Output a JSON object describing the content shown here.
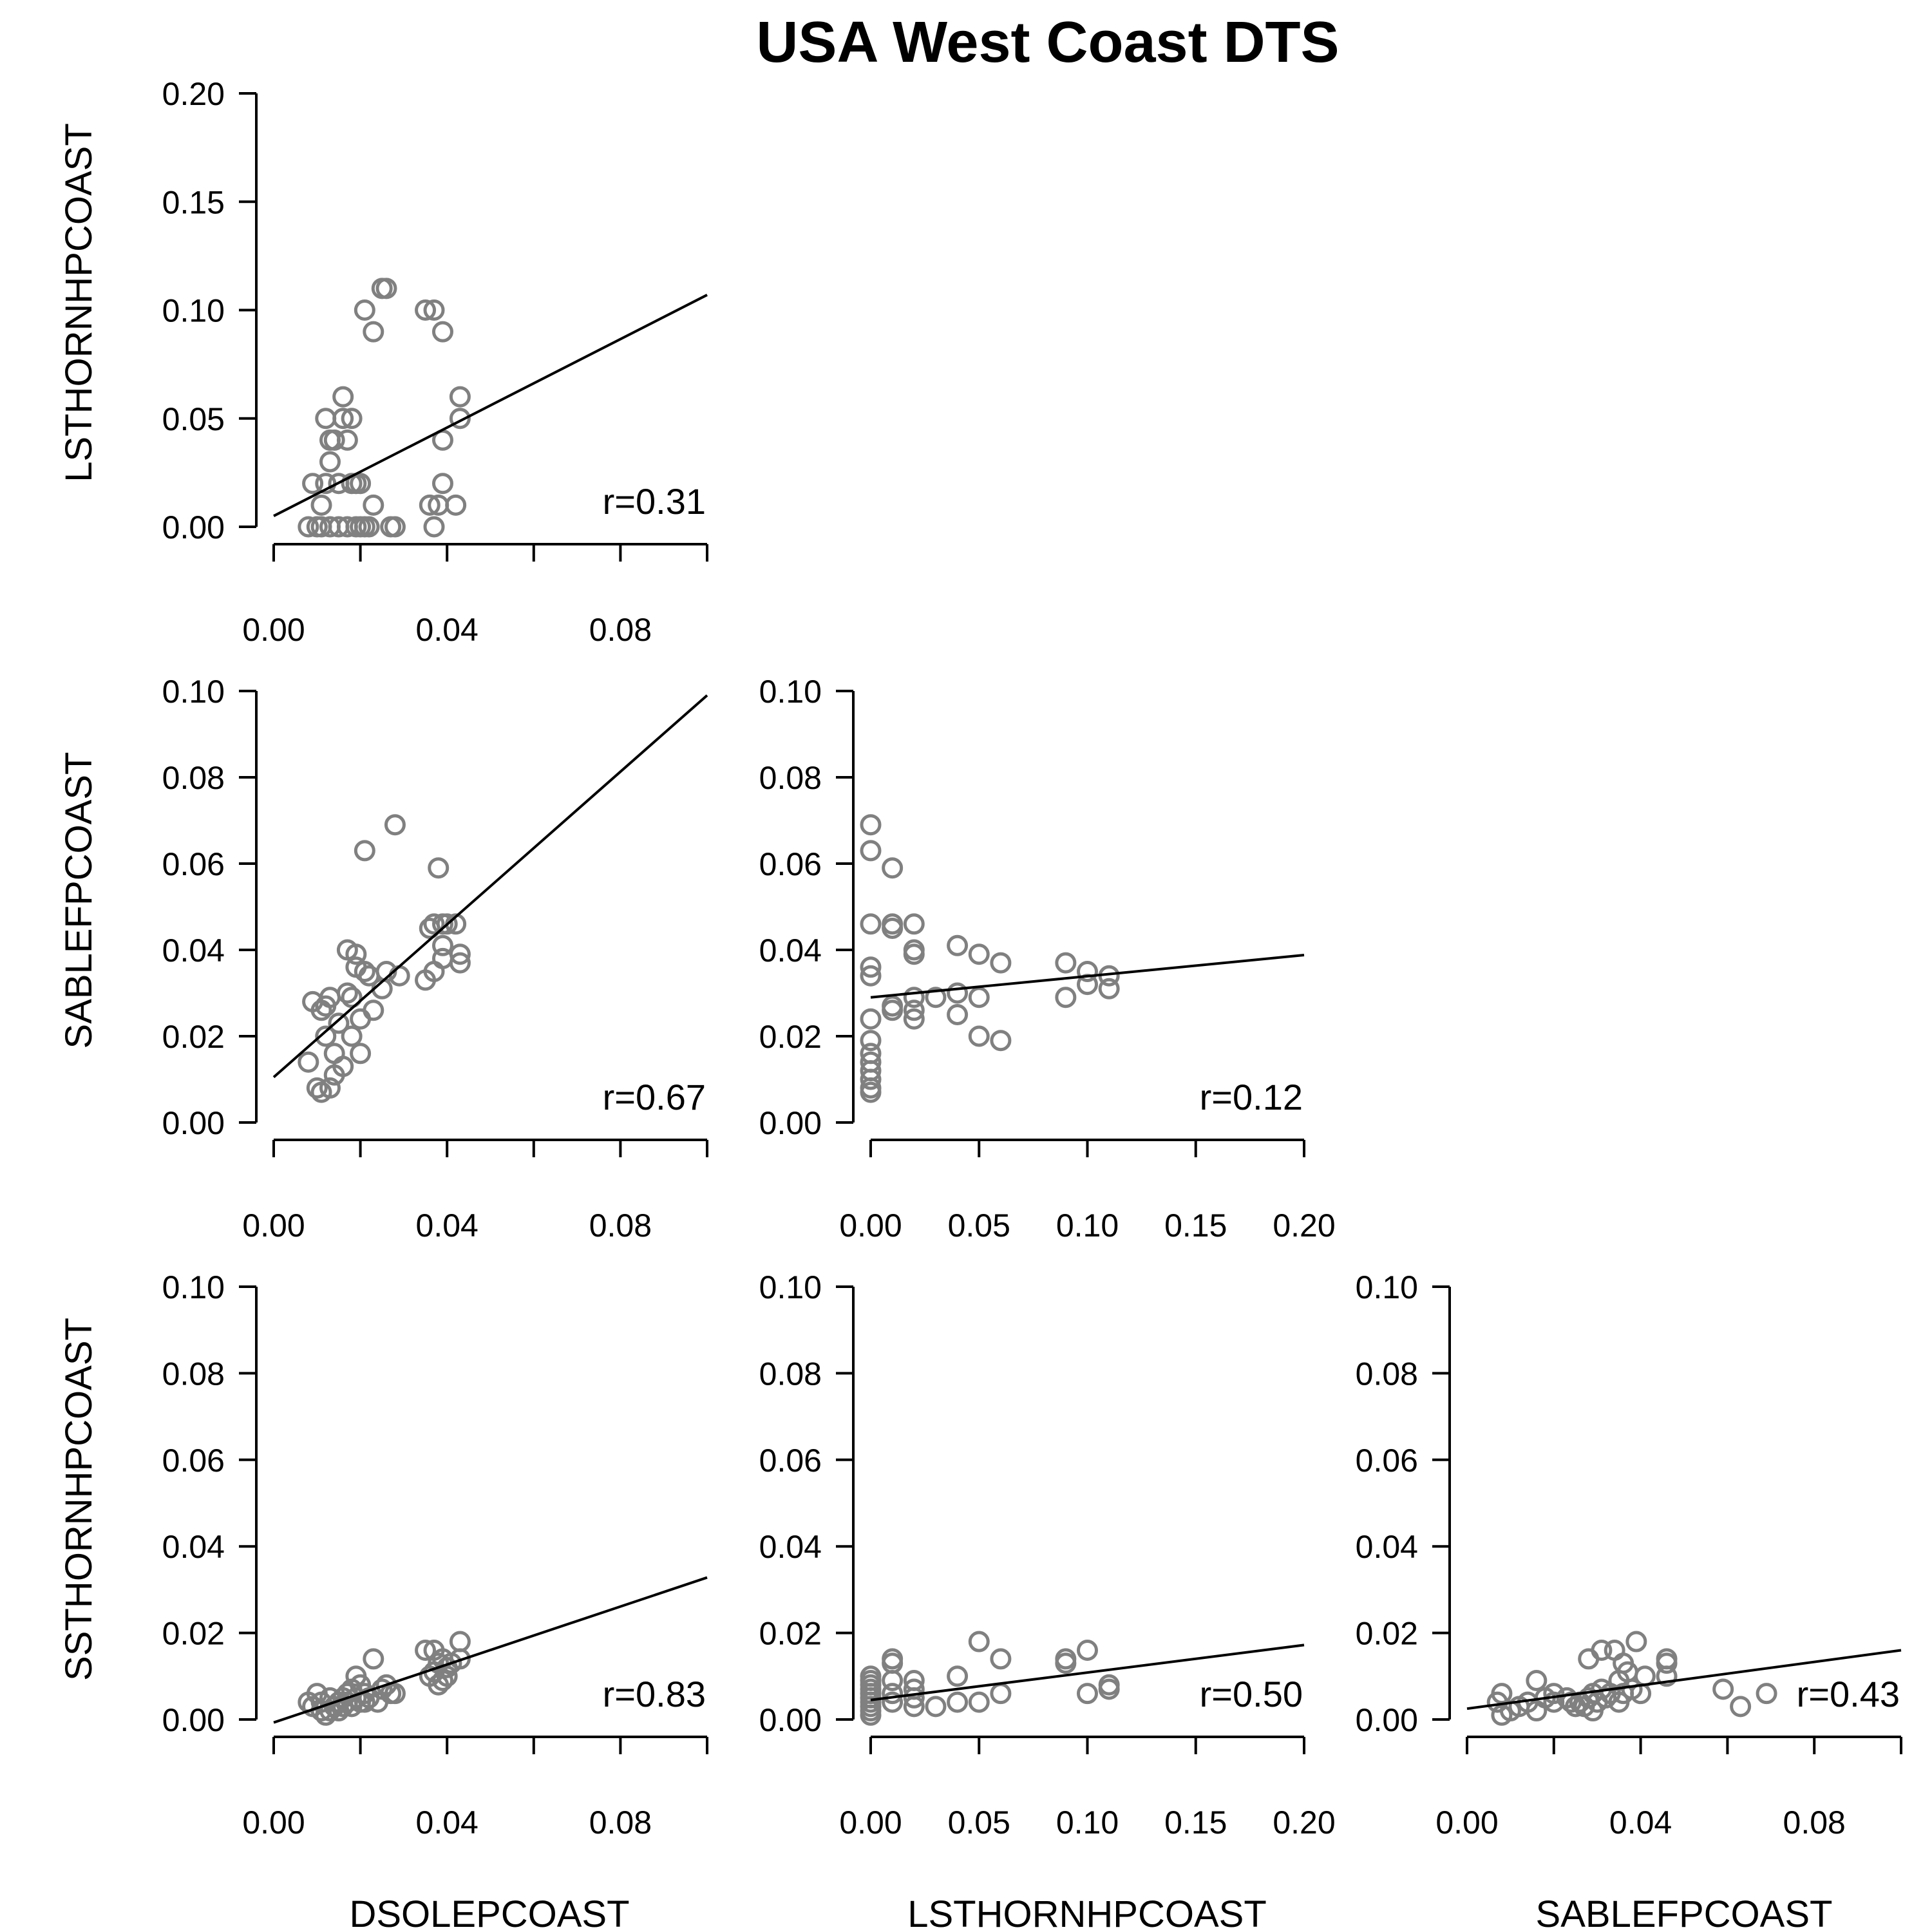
{
  "title": "USA West Coast DTS",
  "colors": {
    "point": "#808080",
    "line": "#000000"
  },
  "row_labels": [
    "LSTHORNHPCOAST",
    "SABLEFPCOAST",
    "SSTHORNHPCOAST"
  ],
  "col_labels": [
    "DSOLEPCOAST",
    "LSTHORNHPCOAST",
    "SABLEFPCOAST"
  ],
  "chart_data": [
    {
      "type": "scatter",
      "row": 0,
      "col": 0,
      "xlabel": "DSOLEPCOAST",
      "ylabel": "LSTHORNHPCOAST",
      "xlim": [
        0,
        0.1
      ],
      "ylim": [
        0,
        0.2
      ],
      "xticks": [
        "0.00",
        "0.04",
        "0.08"
      ],
      "xtick_values": [
        0,
        0.04,
        0.08
      ],
      "yticks": [
        "0.00",
        "0.05",
        "0.10",
        "0.15",
        "0.20"
      ],
      "ytick_values": [
        0,
        0.05,
        0.1,
        0.15,
        0.2
      ],
      "fit": {
        "x": [
          0,
          0.1
        ],
        "y": [
          0.005,
          0.107
        ]
      },
      "r_label": "r=0.31",
      "points": [
        [
          0.008,
          0
        ],
        [
          0.009,
          0.02
        ],
        [
          0.01,
          0
        ],
        [
          0.011,
          0
        ],
        [
          0.011,
          0.01
        ],
        [
          0.012,
          0.02
        ],
        [
          0.012,
          0.05
        ],
        [
          0.013,
          0
        ],
        [
          0.013,
          0.04
        ],
        [
          0.013,
          0.03
        ],
        [
          0.014,
          0.04
        ],
        [
          0.015,
          0.02
        ],
        [
          0.015,
          0
        ],
        [
          0.016,
          0.05
        ],
        [
          0.016,
          0.06
        ],
        [
          0.017,
          0
        ],
        [
          0.017,
          0.04
        ],
        [
          0.018,
          0.02
        ],
        [
          0.018,
          0.05
        ],
        [
          0.019,
          0
        ],
        [
          0.019,
          0.02
        ],
        [
          0.02,
          0
        ],
        [
          0.02,
          0.02
        ],
        [
          0.021,
          0.1
        ],
        [
          0.021,
          0
        ],
        [
          0.022,
          0
        ],
        [
          0.023,
          0.09
        ],
        [
          0.023,
          0.01
        ],
        [
          0.025,
          0.11
        ],
        [
          0.026,
          0.11
        ],
        [
          0.027,
          0
        ],
        [
          0.028,
          0
        ],
        [
          0.035,
          0.1
        ],
        [
          0.036,
          0.01
        ],
        [
          0.037,
          0
        ],
        [
          0.037,
          0.1
        ],
        [
          0.038,
          0.01
        ],
        [
          0.039,
          0.09
        ],
        [
          0.039,
          0.02
        ],
        [
          0.039,
          0.04
        ],
        [
          0.042,
          0.01
        ],
        [
          0.043,
          0.06
        ],
        [
          0.043,
          0.05
        ]
      ]
    },
    {
      "type": "scatter",
      "row": 1,
      "col": 0,
      "xlabel": "DSOLEPCOAST",
      "ylabel": "SABLEFPCOAST",
      "xlim": [
        0,
        0.1
      ],
      "ylim": [
        0,
        0.1
      ],
      "xticks": [
        "0.00",
        "0.04",
        "0.08"
      ],
      "xtick_values": [
        0,
        0.04,
        0.08
      ],
      "yticks": [
        "0.00",
        "0.02",
        "0.04",
        "0.06",
        "0.08",
        "0.10"
      ],
      "ytick_values": [
        0,
        0.02,
        0.04,
        0.06,
        0.08,
        0.1
      ],
      "fit": {
        "x": [
          0,
          0.1
        ],
        "y": [
          0.0105,
          0.099
        ]
      },
      "r_label": "r=0.67",
      "points": [
        [
          0.008,
          0.014
        ],
        [
          0.009,
          0.028
        ],
        [
          0.01,
          0.008
        ],
        [
          0.011,
          0.026
        ],
        [
          0.011,
          0.007
        ],
        [
          0.012,
          0.027
        ],
        [
          0.012,
          0.02
        ],
        [
          0.013,
          0.029
        ],
        [
          0.013,
          0.008
        ],
        [
          0.014,
          0.016
        ],
        [
          0.014,
          0.011
        ],
        [
          0.015,
          0.023
        ],
        [
          0.016,
          0.013
        ],
        [
          0.017,
          0.03
        ],
        [
          0.017,
          0.04
        ],
        [
          0.018,
          0.029
        ],
        [
          0.018,
          0.02
        ],
        [
          0.019,
          0.039
        ],
        [
          0.019,
          0.036
        ],
        [
          0.02,
          0.024
        ],
        [
          0.02,
          0.016
        ],
        [
          0.021,
          0.035
        ],
        [
          0.021,
          0.063
        ],
        [
          0.022,
          0.034
        ],
        [
          0.023,
          0.026
        ],
        [
          0.025,
          0.031
        ],
        [
          0.026,
          0.035
        ],
        [
          0.028,
          0.069
        ],
        [
          0.029,
          0.034
        ],
        [
          0.035,
          0.033
        ],
        [
          0.036,
          0.045
        ],
        [
          0.037,
          0.046
        ],
        [
          0.037,
          0.035
        ],
        [
          0.038,
          0.059
        ],
        [
          0.039,
          0.046
        ],
        [
          0.039,
          0.041
        ],
        [
          0.039,
          0.038
        ],
        [
          0.04,
          0.046
        ],
        [
          0.042,
          0.046
        ],
        [
          0.043,
          0.039
        ],
        [
          0.043,
          0.037
        ]
      ]
    },
    {
      "type": "scatter",
      "row": 1,
      "col": 1,
      "xlabel": "LSTHORNHPCOAST",
      "ylabel": "SABLEFPCOAST",
      "xlim": [
        0,
        0.2
      ],
      "ylim": [
        0,
        0.1
      ],
      "xticks": [
        "0.00",
        "0.05",
        "0.10",
        "0.15",
        "0.20"
      ],
      "xtick_values": [
        0,
        0.05,
        0.1,
        0.15,
        0.2
      ],
      "yticks": [
        "0.00",
        "0.02",
        "0.04",
        "0.06",
        "0.08",
        "0.10"
      ],
      "ytick_values": [
        0,
        0.02,
        0.04,
        0.06,
        0.08,
        0.1
      ],
      "fit": {
        "x": [
          0,
          0.2
        ],
        "y": [
          0.029,
          0.0388
        ]
      },
      "r_label": "r=0.12",
      "points": [
        [
          0,
          0.069
        ],
        [
          0,
          0.063
        ],
        [
          0,
          0.046
        ],
        [
          0,
          0.036
        ],
        [
          0,
          0.034
        ],
        [
          0,
          0.024
        ],
        [
          0,
          0.019
        ],
        [
          0,
          0.016
        ],
        [
          0,
          0.014
        ],
        [
          0,
          0.012
        ],
        [
          0,
          0.01
        ],
        [
          0,
          0.008
        ],
        [
          0,
          0.007
        ],
        [
          0.01,
          0.059
        ],
        [
          0.01,
          0.046
        ],
        [
          0.01,
          0.045
        ],
        [
          0.01,
          0.027
        ],
        [
          0.01,
          0.026
        ],
        [
          0.02,
          0.046
        ],
        [
          0.02,
          0.04
        ],
        [
          0.02,
          0.039
        ],
        [
          0.02,
          0.029
        ],
        [
          0.02,
          0.026
        ],
        [
          0.02,
          0.024
        ],
        [
          0.03,
          0.029
        ],
        [
          0.04,
          0.041
        ],
        [
          0.04,
          0.03
        ],
        [
          0.04,
          0.025
        ],
        [
          0.05,
          0.039
        ],
        [
          0.05,
          0.029
        ],
        [
          0.05,
          0.02
        ],
        [
          0.06,
          0.037
        ],
        [
          0.06,
          0.019
        ],
        [
          0.09,
          0.037
        ],
        [
          0.09,
          0.029
        ],
        [
          0.1,
          0.035
        ],
        [
          0.1,
          0.032
        ],
        [
          0.11,
          0.034
        ],
        [
          0.11,
          0.031
        ]
      ]
    },
    {
      "type": "scatter",
      "row": 2,
      "col": 0,
      "xlabel": "DSOLEPCOAST",
      "ylabel": "SSTHORNHPCOAST",
      "xlim": [
        0,
        0.1
      ],
      "ylim": [
        0,
        0.1
      ],
      "xticks": [
        "0.00",
        "0.04",
        "0.08"
      ],
      "xtick_values": [
        0,
        0.04,
        0.08
      ],
      "yticks": [
        "0.00",
        "0.02",
        "0.04",
        "0.06",
        "0.08",
        "0.10"
      ],
      "ytick_values": [
        0,
        0.02,
        0.04,
        0.06,
        0.08,
        0.1
      ],
      "fit": {
        "x": [
          0,
          0.1
        ],
        "y": [
          -0.0007,
          0.0328
        ]
      },
      "r_label": "r=0.83",
      "points": [
        [
          0.008,
          0.004
        ],
        [
          0.009,
          0.003
        ],
        [
          0.01,
          0.006
        ],
        [
          0.011,
          0.002
        ],
        [
          0.011,
          0.004
        ],
        [
          0.012,
          0.001
        ],
        [
          0.013,
          0.005
        ],
        [
          0.013,
          0.002
        ],
        [
          0.014,
          0.003
        ],
        [
          0.015,
          0.004
        ],
        [
          0.015,
          0.002
        ],
        [
          0.016,
          0.005
        ],
        [
          0.016,
          0.003
        ],
        [
          0.017,
          0.006
        ],
        [
          0.017,
          0.004
        ],
        [
          0.018,
          0.007
        ],
        [
          0.018,
          0.003
        ],
        [
          0.019,
          0.01
        ],
        [
          0.019,
          0.005
        ],
        [
          0.02,
          0.008
        ],
        [
          0.02,
          0.004
        ],
        [
          0.021,
          0.006
        ],
        [
          0.021,
          0.004
        ],
        [
          0.022,
          0.005
        ],
        [
          0.023,
          0.014
        ],
        [
          0.024,
          0.004
        ],
        [
          0.025,
          0.007
        ],
        [
          0.026,
          0.008
        ],
        [
          0.027,
          0.006
        ],
        [
          0.028,
          0.006
        ],
        [
          0.035,
          0.016
        ],
        [
          0.036,
          0.01
        ],
        [
          0.037,
          0.016
        ],
        [
          0.037,
          0.011
        ],
        [
          0.038,
          0.008
        ],
        [
          0.038,
          0.013
        ],
        [
          0.039,
          0.009
        ],
        [
          0.039,
          0.014
        ],
        [
          0.04,
          0.01
        ],
        [
          0.04,
          0.012
        ],
        [
          0.041,
          0.013
        ],
        [
          0.043,
          0.018
        ],
        [
          0.043,
          0.014
        ]
      ]
    },
    {
      "type": "scatter",
      "row": 2,
      "col": 1,
      "xlabel": "LSTHORNHPCOAST",
      "ylabel": "SSTHORNHPCOAST",
      "xlim": [
        0,
        0.2
      ],
      "ylim": [
        0,
        0.1
      ],
      "xticks": [
        "0.00",
        "0.05",
        "0.10",
        "0.15",
        "0.20"
      ],
      "xtick_values": [
        0,
        0.05,
        0.1,
        0.15,
        0.2
      ],
      "yticks": [
        "0.00",
        "0.02",
        "0.04",
        "0.06",
        "0.08",
        "0.10"
      ],
      "ytick_values": [
        0,
        0.02,
        0.04,
        0.06,
        0.08,
        0.1
      ],
      "fit": {
        "x": [
          0,
          0.2
        ],
        "y": [
          0.0045,
          0.0172
        ]
      },
      "r_label": "r=0.50",
      "points": [
        [
          0,
          0.001
        ],
        [
          0,
          0.002
        ],
        [
          0,
          0.003
        ],
        [
          0,
          0.004
        ],
        [
          0,
          0.005
        ],
        [
          0,
          0.006
        ],
        [
          0,
          0.007
        ],
        [
          0,
          0.008
        ],
        [
          0,
          0.009
        ],
        [
          0,
          0.01
        ],
        [
          0.01,
          0.014
        ],
        [
          0.01,
          0.013
        ],
        [
          0.01,
          0.009
        ],
        [
          0.01,
          0.006
        ],
        [
          0.01,
          0.004
        ],
        [
          0.02,
          0.009
        ],
        [
          0.02,
          0.007
        ],
        [
          0.02,
          0.005
        ],
        [
          0.02,
          0.003
        ],
        [
          0.03,
          0.003
        ],
        [
          0.04,
          0.01
        ],
        [
          0.04,
          0.004
        ],
        [
          0.05,
          0.018
        ],
        [
          0.05,
          0.004
        ],
        [
          0.06,
          0.014
        ],
        [
          0.06,
          0.006
        ],
        [
          0.09,
          0.014
        ],
        [
          0.09,
          0.013
        ],
        [
          0.1,
          0.016
        ],
        [
          0.1,
          0.006
        ],
        [
          0.11,
          0.008
        ],
        [
          0.11,
          0.007
        ]
      ]
    },
    {
      "type": "scatter",
      "row": 2,
      "col": 2,
      "xlabel": "SABLEFPCOAST",
      "ylabel": "SSTHORNHPCOAST",
      "xlim": [
        0,
        0.1
      ],
      "ylim": [
        0,
        0.1
      ],
      "xticks": [
        "0.00",
        "0.04",
        "0.08"
      ],
      "xtick_values": [
        0,
        0.04,
        0.08
      ],
      "yticks": [
        "0.00",
        "0.02",
        "0.04",
        "0.06",
        "0.08",
        "0.10"
      ],
      "ytick_values": [
        0,
        0.02,
        0.04,
        0.06,
        0.08,
        0.1
      ],
      "fit": {
        "x": [
          0,
          0.1
        ],
        "y": [
          0.0025,
          0.016
        ]
      },
      "r_label": "r=0.43",
      "points": [
        [
          0.007,
          0.004
        ],
        [
          0.008,
          0.001
        ],
        [
          0.008,
          0.006
        ],
        [
          0.01,
          0.002
        ],
        [
          0.012,
          0.003
        ],
        [
          0.014,
          0.004
        ],
        [
          0.016,
          0.009
        ],
        [
          0.016,
          0.002
        ],
        [
          0.018,
          0.005
        ],
        [
          0.02,
          0.004
        ],
        [
          0.02,
          0.006
        ],
        [
          0.023,
          0.005
        ],
        [
          0.024,
          0.004
        ],
        [
          0.025,
          0.003
        ],
        [
          0.026,
          0.004
        ],
        [
          0.027,
          0.003
        ],
        [
          0.028,
          0.005
        ],
        [
          0.028,
          0.014
        ],
        [
          0.029,
          0.006
        ],
        [
          0.029,
          0.002
        ],
        [
          0.03,
          0.004
        ],
        [
          0.031,
          0.016
        ],
        [
          0.031,
          0.007
        ],
        [
          0.032,
          0.005
        ],
        [
          0.033,
          0.006
        ],
        [
          0.034,
          0.016
        ],
        [
          0.035,
          0.004
        ],
        [
          0.035,
          0.009
        ],
        [
          0.036,
          0.013
        ],
        [
          0.036,
          0.006
        ],
        [
          0.037,
          0.011
        ],
        [
          0.038,
          0.007
        ],
        [
          0.039,
          0.018
        ],
        [
          0.04,
          0.006
        ],
        [
          0.041,
          0.01
        ],
        [
          0.046,
          0.014
        ],
        [
          0.046,
          0.013
        ],
        [
          0.046,
          0.01
        ],
        [
          0.059,
          0.007
        ],
        [
          0.063,
          0.003
        ],
        [
          0.069,
          0.006
        ]
      ]
    }
  ]
}
